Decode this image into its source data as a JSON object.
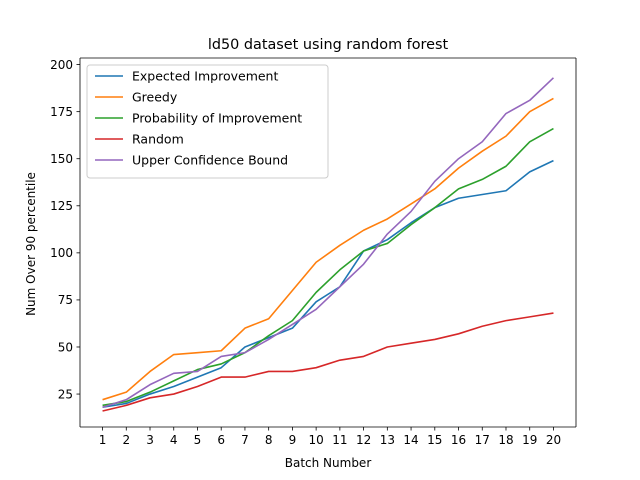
{
  "chart_data": {
    "type": "line",
    "title": "ld50 dataset using random forest",
    "xlabel": "Batch Number",
    "ylabel": "Num Over 90 percentile",
    "x": [
      1,
      2,
      3,
      4,
      5,
      6,
      7,
      8,
      9,
      10,
      11,
      12,
      13,
      14,
      15,
      16,
      17,
      18,
      19,
      20
    ],
    "xticks": [
      1,
      2,
      3,
      4,
      5,
      6,
      7,
      8,
      9,
      10,
      11,
      12,
      13,
      14,
      15,
      16,
      17,
      18,
      19,
      20
    ],
    "yticks": [
      25,
      50,
      75,
      100,
      125,
      150,
      175,
      200
    ],
    "xlim": [
      0.05,
      20.95
    ],
    "ylim": [
      7.5,
      203.5
    ],
    "grid": false,
    "legend_position": "upper left",
    "series": [
      {
        "name": "Expected Improvement",
        "color": "#1f77b4",
        "values": [
          18,
          20,
          25,
          29,
          34,
          39,
          50,
          55,
          60,
          74,
          82,
          101,
          107,
          116,
          124,
          129,
          131,
          133,
          143,
          149
        ]
      },
      {
        "name": "Greedy",
        "color": "#ff7f0e",
        "values": [
          22,
          26,
          37,
          46,
          47,
          48,
          60,
          65,
          80,
          95,
          104,
          112,
          118,
          126,
          134,
          145,
          154,
          162,
          175,
          182
        ]
      },
      {
        "name": "Probability of Improvement",
        "color": "#2ca02c",
        "values": [
          19,
          21,
          26,
          32,
          38,
          41,
          47,
          56,
          64,
          79,
          91,
          101,
          105,
          115,
          124,
          134,
          139,
          146,
          159,
          166
        ]
      },
      {
        "name": "Random",
        "color": "#d62728",
        "values": [
          16,
          19,
          23,
          25,
          29,
          34,
          34,
          37,
          37,
          39,
          43,
          45,
          50,
          52,
          54,
          57,
          61,
          64,
          66,
          68
        ]
      },
      {
        "name": "Upper Confidence Bound",
        "color": "#9467bd",
        "values": [
          18,
          22,
          30,
          36,
          37,
          45,
          47,
          54,
          62,
          70,
          82,
          94,
          110,
          122,
          138,
          150,
          159,
          174,
          181,
          193
        ]
      }
    ]
  }
}
